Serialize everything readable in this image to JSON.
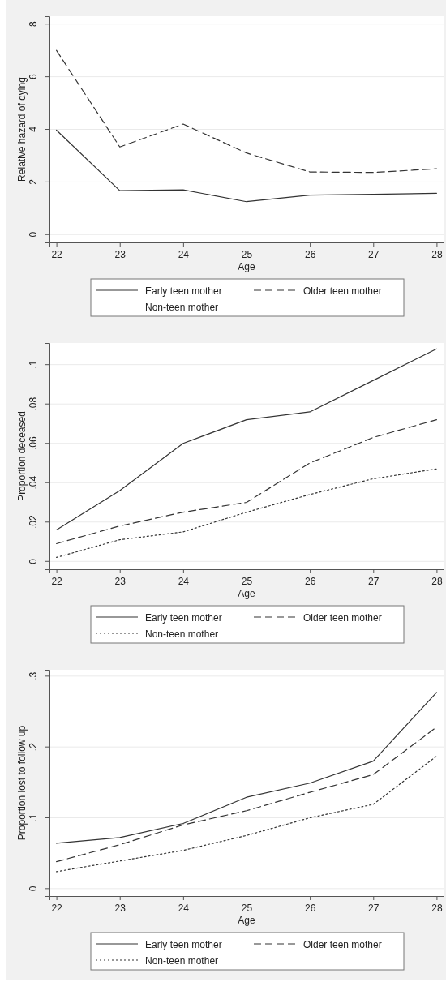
{
  "chart_data": [
    {
      "type": "line",
      "xlabel": "Age",
      "ylabel": "Relative hazard of dying",
      "x": [
        22,
        23,
        24,
        25,
        26,
        27,
        28
      ],
      "xlim": [
        21.89,
        28.11
      ],
      "xticks": [
        22,
        23,
        24,
        25,
        26,
        27,
        28
      ],
      "ylim": [
        -0.3,
        8.3
      ],
      "yticks": [
        0,
        2,
        4,
        6,
        8
      ],
      "grid": "y",
      "legend": "bottom",
      "marker": "none",
      "series": [
        {
          "name": "Early teen mother",
          "color": "#333333",
          "line_style": "solid",
          "values": [
            3.97,
            1.67,
            1.7,
            1.25,
            1.5,
            1.53,
            1.57
          ]
        },
        {
          "name": "Older teen mother",
          "color": "#333333",
          "line_style": "dashed",
          "values": [
            7.0,
            3.33,
            4.2,
            3.1,
            2.38,
            2.36,
            2.5
          ]
        },
        {
          "name": "Non-teen mother",
          "values": [
            null,
            null,
            null,
            null,
            null,
            null,
            null
          ]
        }
      ]
    },
    {
      "type": "line",
      "xlabel": "Age",
      "ylabel": "Proportion deceased",
      "x": [
        22,
        23,
        24,
        25,
        26,
        27,
        28
      ],
      "xlim": [
        21.89,
        28.11
      ],
      "xticks": [
        22,
        23,
        24,
        25,
        26,
        27,
        28
      ],
      "ylim": [
        -0.004,
        0.111
      ],
      "yticks": [
        {
          "value": 0,
          "label": "0"
        },
        {
          "value": 0.02,
          "label": ".02"
        },
        {
          "value": 0.04,
          "label": ".04"
        },
        {
          "value": 0.06,
          "label": ".06"
        },
        {
          "value": 0.08,
          "label": ".08"
        },
        {
          "value": 0.1,
          "label": ".1"
        }
      ],
      "grid": "y",
      "legend": "bottom",
      "marker": "none",
      "series": [
        {
          "name": "Early teen mother",
          "color": "#333333",
          "line_style": "solid",
          "values": [
            0.016,
            0.036,
            0.06,
            0.072,
            0.076,
            0.092,
            0.108
          ]
        },
        {
          "name": "Older teen mother",
          "color": "#333333",
          "line_style": "dashed",
          "values": [
            0.009,
            0.018,
            0.025,
            0.03,
            0.05,
            0.063,
            0.072
          ]
        },
        {
          "name": "Non-teen mother",
          "color": "#333333",
          "line_style": "dotted",
          "values": [
            0.002,
            0.011,
            0.015,
            0.025,
            0.034,
            0.042,
            0.047
          ]
        }
      ]
    },
    {
      "type": "line",
      "xlabel": "Age",
      "ylabel": "Proportion lost to follow up",
      "x": [
        22,
        23,
        24,
        25,
        26,
        27,
        28
      ],
      "xlim": [
        21.89,
        28.11
      ],
      "xticks": [
        22,
        23,
        24,
        25,
        26,
        27,
        28
      ],
      "ylim": [
        -0.0105,
        0.309
      ],
      "yticks": [
        {
          "value": 0,
          "label": "0"
        },
        {
          "value": 0.1,
          "label": ".1"
        },
        {
          "value": 0.2,
          "label": ".2"
        },
        {
          "value": 0.3,
          "label": ".3"
        }
      ],
      "grid": "y",
      "legend": "bottom",
      "marker": "none",
      "series": [
        {
          "name": "Early teen mother",
          "color": "#333333",
          "line_style": "solid",
          "values": [
            0.064,
            0.072,
            0.092,
            0.129,
            0.149,
            0.18,
            0.277
          ]
        },
        {
          "name": "Older teen mother",
          "color": "#333333",
          "line_style": "dashed",
          "values": [
            0.038,
            0.062,
            0.09,
            0.11,
            0.136,
            0.161,
            0.228
          ]
        },
        {
          "name": "Non-teen mother",
          "color": "#333333",
          "line_style": "dotted",
          "values": [
            0.024,
            0.039,
            0.054,
            0.075,
            0.1,
            0.119,
            0.187
          ]
        }
      ]
    }
  ]
}
